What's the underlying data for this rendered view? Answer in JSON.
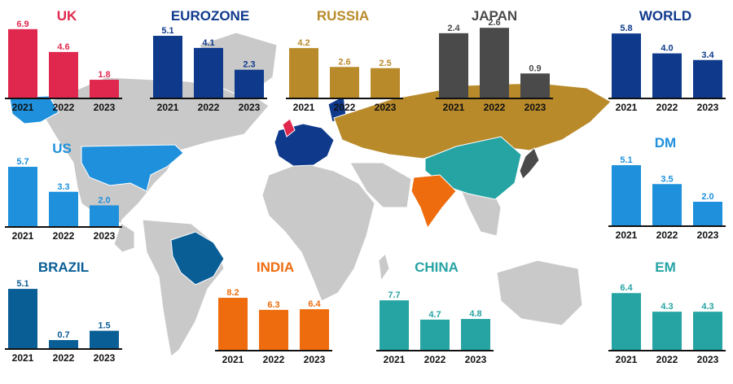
{
  "chart_data": [
    {
      "type": "bar",
      "title": "UK",
      "categories": [
        "2021",
        "2022",
        "2023"
      ],
      "values": [
        6.9,
        4.6,
        1.8
      ],
      "color": "#E0284F"
    },
    {
      "type": "bar",
      "title": "EUROZONE",
      "categories": [
        "2021",
        "2022",
        "2023"
      ],
      "values": [
        5.1,
        4.1,
        2.3
      ],
      "color": "#0F3A8C"
    },
    {
      "type": "bar",
      "title": "RUSSIA",
      "categories": [
        "2021",
        "2022",
        "2023"
      ],
      "values": [
        4.2,
        2.6,
        2.5
      ],
      "color": "#B88A2A"
    },
    {
      "type": "bar",
      "title": "JAPAN",
      "categories": [
        "2021",
        "2022",
        "2023"
      ],
      "values": [
        2.4,
        2.6,
        0.9
      ],
      "color": "#4A4A4A"
    },
    {
      "type": "bar",
      "title": "WORLD",
      "categories": [
        "2021",
        "2022",
        "2023"
      ],
      "values": [
        5.8,
        4.0,
        3.4
      ],
      "color": "#0F3A8C"
    },
    {
      "type": "bar",
      "title": "US",
      "categories": [
        "2021",
        "2022",
        "2023"
      ],
      "values": [
        5.7,
        3.3,
        2.0
      ],
      "color": "#1E90DC"
    },
    {
      "type": "bar",
      "title": "DM",
      "categories": [
        "2021",
        "2022",
        "2023"
      ],
      "values": [
        5.1,
        3.5,
        2.0
      ],
      "color": "#1E90DC"
    },
    {
      "type": "bar",
      "title": "BRAZIL",
      "categories": [
        "2021",
        "2022",
        "2023"
      ],
      "values": [
        5.1,
        0.7,
        1.5
      ],
      "color": "#0A5E96"
    },
    {
      "type": "bar",
      "title": "INDIA",
      "categories": [
        "2021",
        "2022",
        "2023"
      ],
      "values": [
        8.2,
        6.3,
        6.4
      ],
      "color": "#EE6C0E"
    },
    {
      "type": "bar",
      "title": "CHINA",
      "categories": [
        "2021",
        "2022",
        "2023"
      ],
      "values": [
        7.7,
        4.7,
        4.8
      ],
      "color": "#26A3A3"
    },
    {
      "type": "bar",
      "title": "EM",
      "categories": [
        "2021",
        "2022",
        "2023"
      ],
      "values": [
        6.4,
        4.3,
        4.3
      ],
      "color": "#26A3A3"
    }
  ]
}
